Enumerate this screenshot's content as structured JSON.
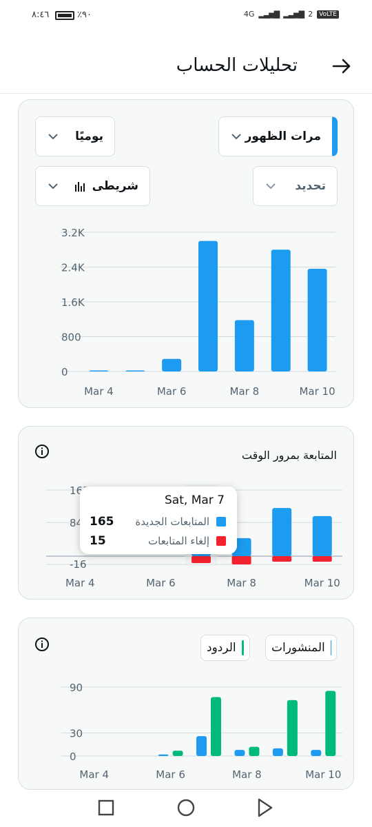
{
  "status_bar": {
    "time": "٨:٤٦",
    "battery": "٪٩٠",
    "network": "4G",
    "sim2": "2",
    "volte": "VoLTE"
  },
  "header": {
    "title": "تحليلات الحساب",
    "back_icon": "arrow-right-icon"
  },
  "controls": {
    "metric": "مرات الظهور",
    "period": "يوميًا",
    "selection": "تحديد",
    "chart_style": "شريطى"
  },
  "colors": {
    "blue": "#1d9bf0",
    "red": "#f4212e",
    "green": "#00ba7c",
    "grid": "#cfd9de",
    "card_bg": "#f7f9f9"
  },
  "followers_card": {
    "title": "المتابعة بمرور الوقت",
    "tooltip": {
      "date": "Sat, Mar 7",
      "rows": [
        {
          "label": "المتابعات الجديدة",
          "value": "165",
          "color": "#1d9bf0"
        },
        {
          "label": "إلغاء المتابعات",
          "value": "15",
          "color": "#f4212e"
        }
      ]
    }
  },
  "posts_card": {
    "legend": [
      {
        "label": "المنشورات",
        "color": "#1d9bf0"
      },
      {
        "label": "الردود",
        "color": "#00ba7c"
      }
    ]
  },
  "chart_data": [
    {
      "type": "bar",
      "title": "",
      "categories": [
        "Mar 4",
        "Mar 5",
        "Mar 6",
        "Mar 7",
        "Mar 8",
        "Mar 9",
        "Mar 10"
      ],
      "x_tick_labels": [
        "Mar 4",
        "Mar 6",
        "Mar 8",
        "Mar 10"
      ],
      "y_tick_labels": [
        "0",
        "800",
        "1.6K",
        "2.4K",
        "3.2K"
      ],
      "ylim": [
        0,
        3200
      ],
      "series": [
        {
          "values": [
            10,
            10,
            290,
            3000,
            1180,
            2800,
            2360
          ]
        }
      ]
    },
    {
      "type": "bar",
      "title": "المتابعة بمرور الوقت",
      "categories": [
        "Mar 4",
        "Mar 5",
        "Mar 6",
        "Mar 7",
        "Mar 8",
        "Mar 9",
        "Mar 10"
      ],
      "x_tick_labels": [
        "Mar 4",
        "Mar 6",
        "Mar 8",
        "Mar 10"
      ],
      "y_tick_labels": [
        "-16",
        "84",
        "165"
      ],
      "ylim": [
        -16,
        165
      ],
      "series": [
        {
          "name": "المتابعات الجديدة",
          "values": [
            0,
            0,
            0,
            165,
            45,
            120,
            100
          ]
        },
        {
          "name": "إلغاء المتابعات",
          "values": [
            0,
            0,
            0,
            -15,
            -18,
            -12,
            -12
          ]
        }
      ]
    },
    {
      "type": "bar",
      "title": "",
      "categories": [
        "Mar 4",
        "Mar 5",
        "Mar 6",
        "Mar 7",
        "Mar 8",
        "Mar 9",
        "Mar 10"
      ],
      "x_tick_labels": [
        "Mar 4",
        "Mar 6",
        "Mar 8",
        "Mar 10"
      ],
      "y_tick_labels": [
        "0",
        "30",
        "90"
      ],
      "ylim": [
        0,
        90
      ],
      "series": [
        {
          "name": "المنشورات",
          "values": [
            0,
            0,
            2,
            26,
            8,
            10,
            8
          ]
        },
        {
          "name": "الردود",
          "values": [
            0,
            0,
            7,
            77,
            12,
            73,
            85
          ]
        }
      ]
    }
  ]
}
